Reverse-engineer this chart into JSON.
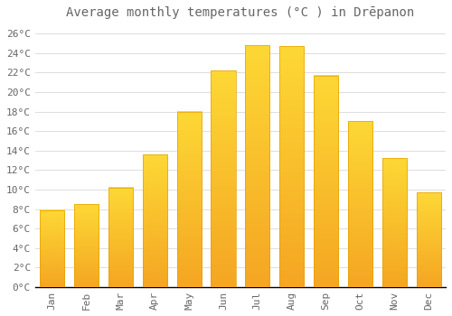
{
  "title": "Average monthly temperatures (°C ) in Drēpanon",
  "months": [
    "Jan",
    "Feb",
    "Mar",
    "Apr",
    "May",
    "Jun",
    "Jul",
    "Aug",
    "Sep",
    "Oct",
    "Nov",
    "Dec"
  ],
  "values": [
    7.9,
    8.5,
    10.2,
    13.6,
    18.0,
    22.2,
    24.8,
    24.7,
    21.7,
    17.0,
    13.2,
    9.7
  ],
  "bar_color_top": "#FDD835",
  "bar_color_bottom": "#F5A623",
  "bar_edge_color": "#E8A000",
  "background_color": "#FFFFFF",
  "grid_color": "#DDDDDD",
  "text_color": "#666666",
  "yticks": [
    0,
    2,
    4,
    6,
    8,
    10,
    12,
    14,
    16,
    18,
    20,
    22,
    24,
    26
  ],
  "ylim": [
    0,
    27
  ],
  "title_fontsize": 10,
  "tick_fontsize": 8,
  "font_family": "monospace"
}
